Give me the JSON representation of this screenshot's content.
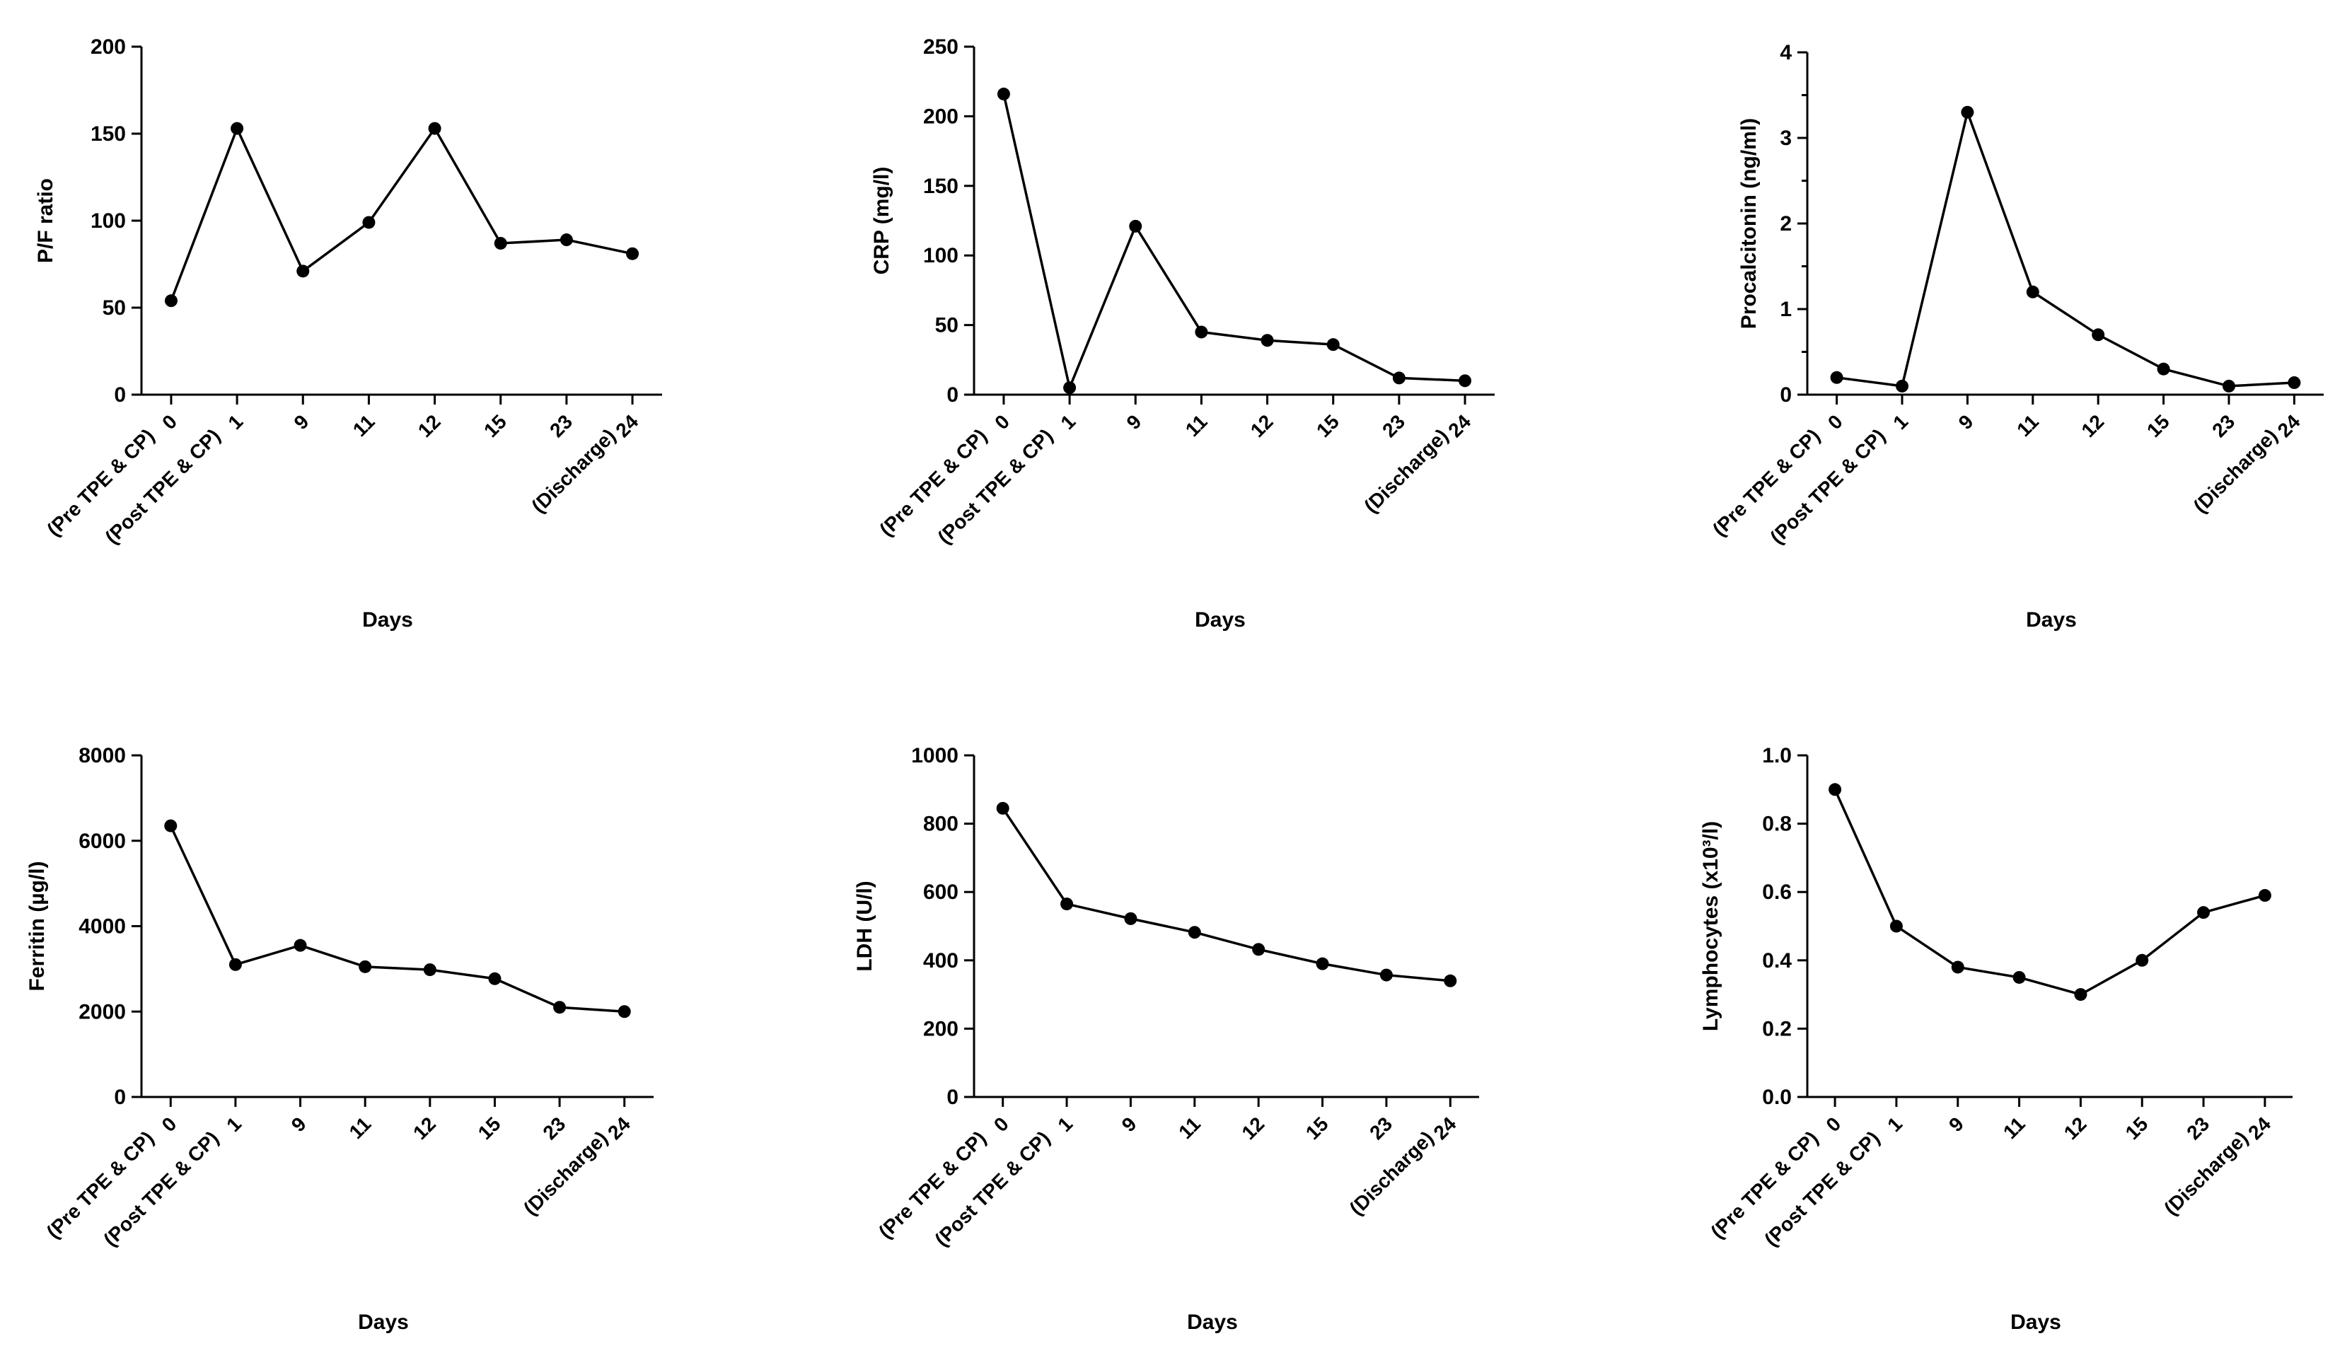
{
  "chart_data": [
    {
      "type": "line",
      "xlabel": "Days",
      "ylabel": "P/F ratio",
      "ylim": [
        0,
        200
      ],
      "yticks": [
        "0",
        "50",
        "100",
        "150",
        "200"
      ],
      "ytick_values": [
        0,
        50,
        100,
        150,
        200
      ],
      "categories": [
        "0",
        "1",
        "9",
        "11",
        "12",
        "15",
        "23",
        "24"
      ],
      "category_notes": [
        "(Pre TPE & CP)",
        "(Post TPE & CP)",
        "",
        "",
        "",
        "",
        "",
        "(Discharge)"
      ],
      "values": [
        54,
        153,
        71,
        99,
        153,
        87,
        89,
        81
      ]
    },
    {
      "type": "line",
      "xlabel": "Days",
      "ylabel": "CRP (mg/l)",
      "ylim": [
        0,
        250
      ],
      "yticks": [
        "0",
        "50",
        "100",
        "150",
        "200",
        "250"
      ],
      "ytick_values": [
        0,
        50,
        100,
        150,
        200,
        250
      ],
      "categories": [
        "0",
        "1",
        "9",
        "11",
        "12",
        "15",
        "23",
        "24"
      ],
      "category_notes": [
        "(Pre TPE & CP)",
        "(Post TPE & CP)",
        "",
        "",
        "",
        "",
        "",
        "(Discharge)"
      ],
      "values": [
        216,
        5,
        121,
        45,
        39,
        36,
        12,
        10
      ]
    },
    {
      "type": "line",
      "xlabel": "Days",
      "ylabel": "Procalcitonin (ng/ml)",
      "ylim": [
        0,
        4
      ],
      "yticks": [
        "0",
        "1",
        "2",
        "3",
        "4"
      ],
      "ytick_values": [
        0,
        1,
        2,
        3,
        4
      ],
      "minor_yticks": [
        0.5,
        1.5,
        2.5,
        3.5
      ],
      "categories": [
        "0",
        "1",
        "9",
        "11",
        "12",
        "15",
        "23",
        "24"
      ],
      "category_notes": [
        "(Pre TPE & CP)",
        "(Post TPE & CP)",
        "",
        "",
        "",
        "",
        "",
        "(Discharge)"
      ],
      "values": [
        0.2,
        0.1,
        3.3,
        1.2,
        0.7,
        0.3,
        0.1,
        0.14
      ]
    },
    {
      "type": "line",
      "xlabel": "Days",
      "ylabel": "Ferritin (µg/l)",
      "ylim": [
        0,
        8000
      ],
      "yticks": [
        "0",
        "2000",
        "4000",
        "6000",
        "8000"
      ],
      "ytick_values": [
        0,
        2000,
        4000,
        6000,
        8000
      ],
      "categories": [
        "0",
        "1",
        "9",
        "11",
        "12",
        "15",
        "23",
        "24"
      ],
      "category_notes": [
        "(Pre TPE & CP)",
        "(Post TPE & CP)",
        "",
        "",
        "",
        "",
        "",
        "(Discharge)"
      ],
      "values": [
        6350,
        3100,
        3550,
        3050,
        2980,
        2770,
        2100,
        2000
      ]
    },
    {
      "type": "line",
      "xlabel": "Days",
      "ylabel": "LDH (U/l)",
      "ylim": [
        0,
        1000
      ],
      "yticks": [
        "0",
        "200",
        "400",
        "600",
        "800",
        "1000"
      ],
      "ytick_values": [
        0,
        200,
        400,
        600,
        800,
        1000
      ],
      "categories": [
        "0",
        "1",
        "9",
        "11",
        "12",
        "15",
        "23",
        "24"
      ],
      "category_notes": [
        "(Pre TPE & CP)",
        "(Post TPE & CP)",
        "",
        "",
        "",
        "",
        "",
        "(Discharge)"
      ],
      "values": [
        845,
        565,
        522,
        482,
        432,
        390,
        357,
        340
      ]
    },
    {
      "type": "line",
      "xlabel": "Days",
      "ylabel": "Lymphocytes (x10³/l)",
      "ylim": [
        0,
        1.0
      ],
      "yticks": [
        "0.0",
        "0.2",
        "0.4",
        "0.6",
        "0.8",
        "1.0"
      ],
      "ytick_values": [
        0,
        0.2,
        0.4,
        0.6,
        0.8,
        1.0
      ],
      "categories": [
        "0",
        "1",
        "9",
        "11",
        "12",
        "15",
        "23",
        "24"
      ],
      "category_notes": [
        "(Pre TPE & CP)",
        "(Post TPE & CP)",
        "",
        "",
        "",
        "",
        "",
        "(Discharge)"
      ],
      "values": [
        0.9,
        0.5,
        0.38,
        0.35,
        0.3,
        0.4,
        0.54,
        0.59
      ]
    }
  ]
}
